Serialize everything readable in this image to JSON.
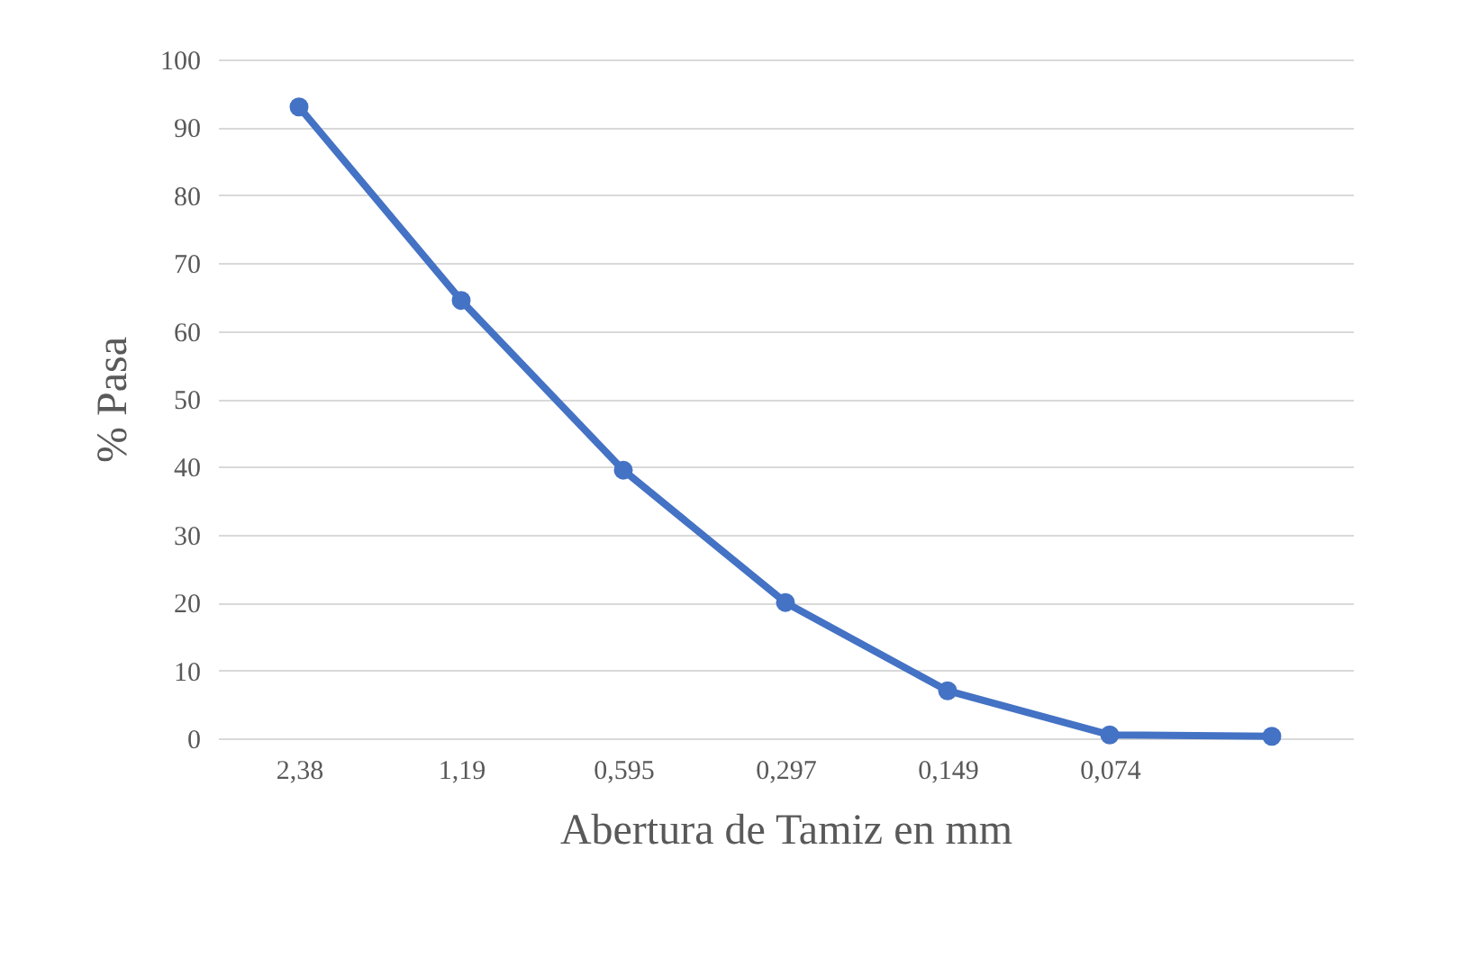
{
  "chart_data": {
    "type": "line",
    "xlabel": "Abertura de Tamiz en mm",
    "ylabel": "% Pasa",
    "categories": [
      "2,38",
      "1,19",
      "0,595",
      "0,297",
      "0,149",
      "0,074",
      null
    ],
    "series": [
      {
        "color": "#4472c4",
        "values": [
          93,
          64.5,
          39.5,
          20,
          7,
          0.5,
          0.3
        ]
      }
    ],
    "ylim": [
      0,
      100
    ],
    "yticks": [
      0,
      10,
      20,
      30,
      40,
      50,
      60,
      70,
      80,
      90,
      100
    ],
    "grid": "y",
    "marker": "circle",
    "line_style": "solid"
  }
}
